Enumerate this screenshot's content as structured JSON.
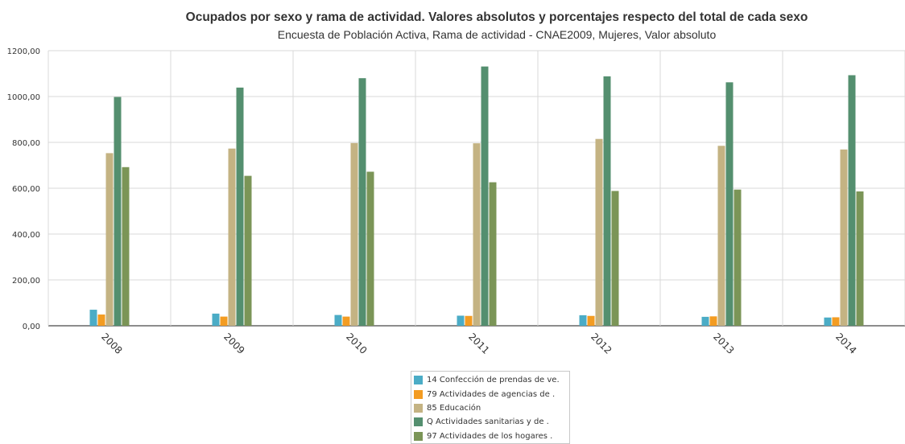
{
  "chart_data": {
    "type": "bar",
    "title": "Ocupados por sexo y rama de actividad. Valores absolutos y porcentajes respecto del total de cada sexo",
    "subtitle": "Encuesta de Población Activa, Rama de actividad - CNAE2009, Mujeres, Valor absoluto",
    "categories": [
      "2008",
      "2009",
      "2010",
      "2011",
      "2012",
      "2013",
      "2014"
    ],
    "yticks": [
      "0,00",
      "200,00",
      "400,00",
      "600,00",
      "800,00",
      "1000,00",
      "1200,00"
    ],
    "ylim": [
      0,
      1200
    ],
    "grid": true,
    "legend_position": "bottom-center",
    "series": [
      {
        "name": "14 Confección de prendas de ve.",
        "color": "#4bacc6",
        "values": [
          70,
          53,
          47,
          44,
          46,
          39,
          36
        ]
      },
      {
        "name": "79 Actividades de agencias de .",
        "color": "#f39c22",
        "values": [
          49,
          40,
          40,
          43,
          43,
          41,
          37
        ]
      },
      {
        "name": "85 Educación",
        "color": "#c4b383",
        "values": [
          753,
          773,
          797,
          796,
          815,
          785,
          769
        ]
      },
      {
        "name": "Q Actividades sanitarias y de .",
        "color": "#548f6f",
        "values": [
          998,
          1039,
          1080,
          1131,
          1088,
          1062,
          1093
        ]
      },
      {
        "name": "97 Actividades de los hogares .",
        "color": "#7b9557",
        "values": [
          692,
          654,
          672,
          626,
          588,
          594,
          586
        ]
      }
    ]
  }
}
